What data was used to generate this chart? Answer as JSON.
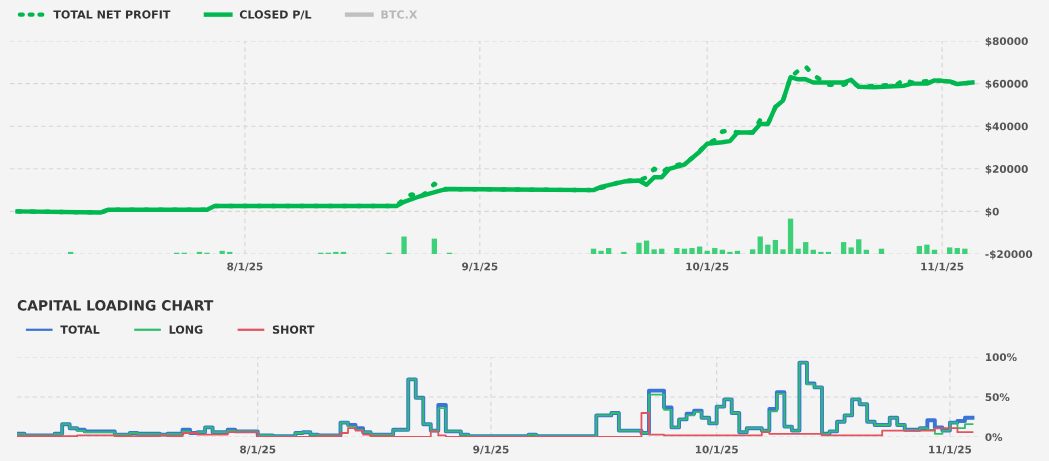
{
  "chart_data": [
    {
      "type": "line",
      "legend": "top left",
      "grid": true,
      "xlim": [
        "2025-07-01",
        "2025-11-06"
      ],
      "xticks": [
        {
          "value": "2025-08-01",
          "label": "8/1/25"
        },
        {
          "value": "2025-09-01",
          "label": "9/1/25"
        },
        {
          "value": "2025-10-01",
          "label": "10/1/25"
        },
        {
          "value": "2025-11-01",
          "label": "11/1/25"
        }
      ],
      "ylim": [
        -20000,
        80000
      ],
      "yticks": [
        {
          "value": -20000,
          "label": "-$20000"
        },
        {
          "value": 0,
          "label": "$0"
        },
        {
          "value": 20000,
          "label": "$20000"
        },
        {
          "value": 40000,
          "label": "$40000"
        },
        {
          "value": 60000,
          "label": "$60000"
        },
        {
          "value": 80000,
          "label": "$80000"
        }
      ],
      "series": [
        {
          "type": "bar",
          "color": "#3ecf79",
          "x": [
            "2025-07-09",
            "2025-07-23",
            "2025-07-24",
            "2025-07-26",
            "2025-07-27",
            "2025-07-29",
            "2025-07-30",
            "2025-08-11",
            "2025-08-12",
            "2025-08-13",
            "2025-08-14",
            "2025-08-20",
            "2025-08-22",
            "2025-08-26",
            "2025-08-28",
            "2025-09-16",
            "2025-09-17",
            "2025-09-18",
            "2025-09-20",
            "2025-09-22",
            "2025-09-23",
            "2025-09-24",
            "2025-09-25",
            "2025-09-27",
            "2025-09-28",
            "2025-09-29",
            "2025-09-30",
            "2025-10-01",
            "2025-10-02",
            "2025-10-03",
            "2025-10-04",
            "2025-10-05",
            "2025-10-07",
            "2025-10-08",
            "2025-10-09",
            "2025-10-10",
            "2025-10-11",
            "2025-10-12",
            "2025-10-13",
            "2025-10-14",
            "2025-10-15",
            "2025-10-16",
            "2025-10-17",
            "2025-10-19",
            "2025-10-20",
            "2025-10-21",
            "2025-10-22",
            "2025-10-24",
            "2025-10-29",
            "2025-10-30",
            "2025-10-31",
            "2025-11-02",
            "2025-11-03",
            "2025-11-04"
          ],
          "values": [
            1000,
            600,
            600,
            1000,
            600,
            1500,
            1000,
            600,
            600,
            1000,
            1000,
            600,
            8200,
            7200,
            600,
            2500,
            1500,
            2800,
            1000,
            5300,
            6300,
            2200,
            2500,
            2800,
            2500,
            2800,
            3500,
            1500,
            2800,
            2000,
            1000,
            1500,
            2200,
            8200,
            4400,
            6600,
            2200,
            16600,
            2500,
            5600,
            2000,
            1000,
            1000,
            5600,
            3100,
            6900,
            2000,
            2500,
            3800,
            4400,
            2000,
            3100,
            2800,
            2500
          ],
          "base": [
            -20000,
            -20000,
            -20000,
            -20000,
            -20000,
            -20000,
            -20000,
            -20000,
            -20000,
            -20000,
            -20000,
            -20000,
            -20000,
            -20000,
            -20000,
            -20000,
            -20000,
            -20000,
            -20000,
            -20000,
            -20000,
            -20000,
            -20000,
            -20000,
            -20000,
            -20000,
            -20000,
            -20000,
            -20000,
            -20000,
            -20000,
            -20000,
            -20000,
            -20000,
            -20000,
            -20000,
            -20000,
            -20000,
            -20000,
            -20000,
            -20000,
            -20000,
            -20000,
            -20000,
            -20000,
            -20000,
            -20000,
            -20000,
            -20000,
            -20000,
            -20000,
            -20000,
            -20000,
            -20000
          ]
        },
        {
          "name": "TOTAL NET PROFIT",
          "color": "#00b84f",
          "line_style": "dotted",
          "x": [
            "2025-07-02",
            "2025-07-13",
            "2025-07-14",
            "2025-07-27",
            "2025-07-28",
            "2025-08-21",
            "2025-08-22",
            "2025-08-23",
            "2025-08-24",
            "2025-08-25",
            "2025-08-26",
            "2025-08-27",
            "2025-09-16",
            "2025-09-18",
            "2025-09-20",
            "2025-09-22",
            "2025-09-23",
            "2025-09-24",
            "2025-09-25",
            "2025-09-26",
            "2025-09-28",
            "2025-09-29",
            "2025-10-01",
            "2025-10-02",
            "2025-10-03",
            "2025-10-04",
            "2025-10-05",
            "2025-10-07",
            "2025-10-08",
            "2025-10-09",
            "2025-10-10",
            "2025-10-11",
            "2025-10-12",
            "2025-10-13",
            "2025-10-14",
            "2025-10-15",
            "2025-10-17",
            "2025-10-19",
            "2025-10-20",
            "2025-10-21",
            "2025-10-26",
            "2025-10-27",
            "2025-10-28",
            "2025-10-31",
            "2025-11-02",
            "2025-11-03",
            "2025-11-05"
          ],
          "values": [
            0,
            -500,
            800,
            800,
            2500,
            2500,
            6000,
            8000,
            6500,
            9000,
            13000,
            10500,
            10000,
            12000,
            14500,
            14500,
            16000,
            20000,
            18000,
            21000,
            22500,
            25000,
            31800,
            33500,
            37500,
            38000,
            37000,
            37000,
            43000,
            41000,
            49000,
            52000,
            63000,
            66000,
            68000,
            64000,
            59500,
            59500,
            61000,
            58500,
            59500,
            62000,
            60500,
            61500,
            61000,
            59800,
            60500
          ]
        },
        {
          "name": "CLOSED P/L",
          "color": "#00b84f",
          "line_style": "solid",
          "x": [
            "2025-07-02",
            "2025-07-13",
            "2025-07-14",
            "2025-07-27",
            "2025-07-28",
            "2025-08-21",
            "2025-08-22",
            "2025-08-24",
            "2025-08-25",
            "2025-08-27",
            "2025-08-28",
            "2025-09-16",
            "2025-09-17",
            "2025-09-20",
            "2025-09-22",
            "2025-09-23",
            "2025-09-24",
            "2025-09-25",
            "2025-09-26",
            "2025-09-28",
            "2025-09-29",
            "2025-09-30",
            "2025-10-01",
            "2025-10-03",
            "2025-10-04",
            "2025-10-05",
            "2025-10-07",
            "2025-10-08",
            "2025-10-09",
            "2025-10-10",
            "2025-10-11",
            "2025-10-12",
            "2025-10-13",
            "2025-10-14",
            "2025-10-15",
            "2025-10-19",
            "2025-10-20",
            "2025-10-21",
            "2025-10-23",
            "2025-10-27",
            "2025-10-28",
            "2025-10-30",
            "2025-10-31",
            "2025-11-02",
            "2025-11-03",
            "2025-11-05"
          ],
          "values": [
            0,
            -500,
            800,
            800,
            2500,
            2500,
            4500,
            7000,
            8000,
            10000,
            10500,
            10000,
            11500,
            14000,
            14500,
            12500,
            16000,
            16000,
            20000,
            22000,
            25000,
            28000,
            31800,
            32500,
            33000,
            37000,
            37000,
            41000,
            41000,
            49000,
            52000,
            63000,
            62000,
            62000,
            60500,
            60500,
            61800,
            58500,
            58300,
            59000,
            60000,
            60000,
            61500,
            61000,
            59800,
            60500
          ]
        },
        {
          "name": "BTC.X",
          "color": "#c0c0c0"
        }
      ]
    },
    {
      "type": "step",
      "title": "CAPITAL LOADING CHART",
      "legend": "top left",
      "grid": true,
      "xlim": [
        "2025-06-30",
        "2025-11-05"
      ],
      "xticks": [
        {
          "value": "2025-08-01",
          "label": "8/1/25"
        },
        {
          "value": "2025-09-01",
          "label": "9/1/25"
        },
        {
          "value": "2025-10-01",
          "label": "10/1/25"
        },
        {
          "value": "2025-11-01",
          "label": "11/1/25"
        }
      ],
      "ylim": [
        0,
        100
      ],
      "yticks": [
        {
          "value": 0,
          "label": "0%"
        },
        {
          "value": 50,
          "label": "50%"
        },
        {
          "value": 100,
          "label": "100%"
        }
      ],
      "series": [
        {
          "name": "TOTAL",
          "color": "#3b73d6",
          "x": [
            "2025-06-30",
            "2025-07-01",
            "2025-07-05",
            "2025-07-06",
            "2025-07-07",
            "2025-07-08",
            "2025-07-09",
            "2025-07-13",
            "2025-07-15",
            "2025-07-16",
            "2025-07-19",
            "2025-07-20",
            "2025-07-22",
            "2025-07-23",
            "2025-07-24",
            "2025-07-25",
            "2025-07-26",
            "2025-07-28",
            "2025-07-29",
            "2025-08-01",
            "2025-08-03",
            "2025-08-06",
            "2025-08-07",
            "2025-08-08",
            "2025-08-09",
            "2025-08-12",
            "2025-08-13",
            "2025-08-14",
            "2025-08-15",
            "2025-08-16",
            "2025-08-19",
            "2025-08-21",
            "2025-08-22",
            "2025-08-23",
            "2025-08-24",
            "2025-08-25",
            "2025-08-26",
            "2025-08-28",
            "2025-08-29",
            "2025-09-06",
            "2025-09-07",
            "2025-09-15",
            "2025-09-17",
            "2025-09-18",
            "2025-09-21",
            "2025-09-22",
            "2025-09-24",
            "2025-09-25",
            "2025-09-26",
            "2025-09-27",
            "2025-09-28",
            "2025-09-29",
            "2025-09-30",
            "2025-10-01",
            "2025-10-02",
            "2025-10-03",
            "2025-10-04",
            "2025-10-05",
            "2025-10-07",
            "2025-10-08",
            "2025-10-09",
            "2025-10-10",
            "2025-10-11",
            "2025-10-12",
            "2025-10-13",
            "2025-10-14",
            "2025-10-15",
            "2025-10-16",
            "2025-10-17",
            "2025-10-18",
            "2025-10-19",
            "2025-10-20",
            "2025-10-21",
            "2025-10-22",
            "2025-10-23",
            "2025-10-24",
            "2025-10-25",
            "2025-10-26",
            "2025-10-28",
            "2025-10-29",
            "2025-10-30",
            "2025-10-31",
            "2025-11-01",
            "2025-11-02",
            "2025-11-03",
            "2025-11-04"
          ],
          "values": [
            4,
            2,
            4,
            16,
            11,
            9,
            7,
            3,
            5,
            4,
            3,
            4,
            9,
            5,
            6,
            12,
            6,
            9,
            7,
            2,
            1,
            5,
            6,
            3,
            2,
            18,
            15,
            11,
            6,
            3,
            9,
            72,
            49,
            16,
            8,
            40,
            7,
            3,
            1,
            3,
            1,
            27,
            30,
            8,
            5,
            58,
            37,
            12,
            22,
            29,
            33,
            24,
            17,
            38,
            47,
            30,
            6,
            11,
            8,
            35,
            56,
            13,
            8,
            93,
            67,
            62,
            4,
            7,
            19,
            27,
            47,
            41,
            19,
            15,
            15,
            24,
            15,
            9,
            11,
            21,
            12,
            8,
            18,
            20,
            24,
            24
          ]
        },
        {
          "name": "LONG",
          "color": "#2ebf6a",
          "x": [
            "2025-06-30",
            "2025-07-01",
            "2025-07-05",
            "2025-07-06",
            "2025-07-07",
            "2025-07-08",
            "2025-07-09",
            "2025-07-13",
            "2025-07-15",
            "2025-07-16",
            "2025-07-19",
            "2025-07-20",
            "2025-07-22",
            "2025-07-23",
            "2025-07-24",
            "2025-07-25",
            "2025-07-26",
            "2025-07-28",
            "2025-07-29",
            "2025-08-01",
            "2025-08-03",
            "2025-08-06",
            "2025-08-07",
            "2025-08-08",
            "2025-08-09",
            "2025-08-12",
            "2025-08-13",
            "2025-08-14",
            "2025-08-15",
            "2025-08-16",
            "2025-08-19",
            "2025-08-21",
            "2025-08-22",
            "2025-08-23",
            "2025-08-24",
            "2025-08-25",
            "2025-08-26",
            "2025-08-28",
            "2025-08-29",
            "2025-09-06",
            "2025-09-07",
            "2025-09-15",
            "2025-09-17",
            "2025-09-18",
            "2025-09-21",
            "2025-09-22",
            "2025-09-24",
            "2025-09-25",
            "2025-09-26",
            "2025-09-27",
            "2025-09-28",
            "2025-09-29",
            "2025-09-30",
            "2025-10-01",
            "2025-10-02",
            "2025-10-03",
            "2025-10-04",
            "2025-10-05",
            "2025-10-07",
            "2025-10-08",
            "2025-10-09",
            "2025-10-10",
            "2025-10-11",
            "2025-10-12",
            "2025-10-13",
            "2025-10-14",
            "2025-10-15",
            "2025-10-16",
            "2025-10-17",
            "2025-10-18",
            "2025-10-19",
            "2025-10-20",
            "2025-10-21",
            "2025-10-22",
            "2025-10-23",
            "2025-10-24",
            "2025-10-25",
            "2025-10-26",
            "2025-10-28",
            "2025-10-29",
            "2025-10-30",
            "2025-10-31",
            "2025-11-01",
            "2025-11-02",
            "2025-11-03",
            "2025-11-04"
          ],
          "values": [
            4,
            2,
            4,
            16,
            11,
            8,
            6,
            3,
            5,
            4,
            3,
            4,
            7,
            5,
            6,
            12,
            6,
            8,
            7,
            2,
            1,
            5,
            6,
            3,
            2,
            18,
            13,
            9,
            6,
            3,
            9,
            72,
            49,
            16,
            8,
            36,
            7,
            3,
            1,
            3,
            1,
            27,
            30,
            8,
            5,
            53,
            34,
            12,
            22,
            27,
            31,
            24,
            17,
            38,
            47,
            30,
            6,
            11,
            8,
            32,
            54,
            13,
            8,
            93,
            66,
            62,
            4,
            7,
            19,
            27,
            47,
            41,
            19,
            15,
            15,
            24,
            15,
            9,
            11,
            9,
            4,
            8,
            18,
            11,
            16,
            16
          ]
        },
        {
          "name": "SHORT",
          "color": "#e0545f",
          "x": [
            "2025-06-30",
            "2025-07-08",
            "2025-07-13",
            "2025-07-19",
            "2025-07-20",
            "2025-07-22",
            "2025-07-24",
            "2025-07-28",
            "2025-08-01",
            "2025-08-09",
            "2025-08-12",
            "2025-08-13",
            "2025-08-14",
            "2025-08-15",
            "2025-08-16",
            "2025-08-19",
            "2025-08-24",
            "2025-08-25",
            "2025-08-26",
            "2025-09-21",
            "2025-09-22",
            "2025-09-24",
            "2025-10-07",
            "2025-10-08",
            "2025-10-15",
            "2025-10-23",
            "2025-10-30",
            "2025-11-02",
            "2025-11-04"
          ],
          "values": [
            1,
            2,
            1,
            2,
            1,
            5,
            3,
            6,
            0,
            1,
            5,
            11,
            8,
            3,
            1,
            0,
            7,
            2,
            0,
            30,
            3,
            2,
            6,
            4,
            2,
            8,
            11,
            6,
            6
          ]
        }
      ]
    }
  ]
}
